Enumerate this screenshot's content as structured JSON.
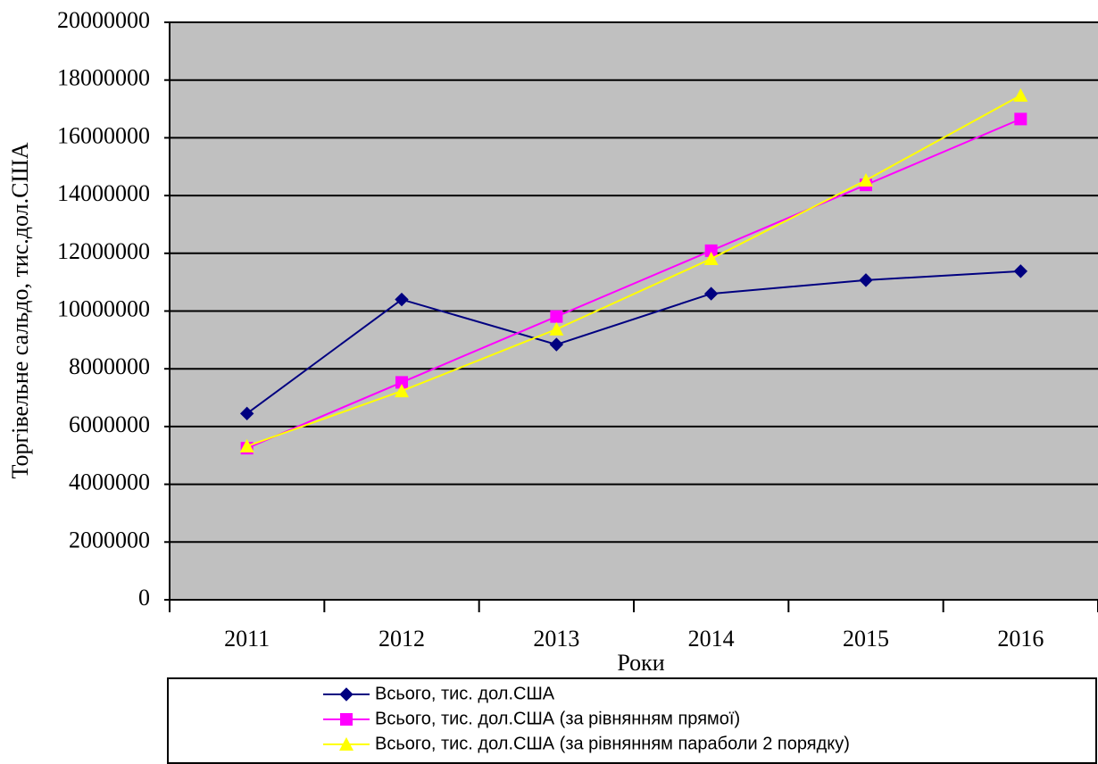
{
  "chart_data": {
    "type": "line",
    "ylabel": "Торгівельне сальдо, тис.дол.США",
    "xlabel": "Роки",
    "categories": [
      "2011",
      "2012",
      "2013",
      "2014",
      "2015",
      "2016"
    ],
    "series": [
      {
        "name": "Всього, тис. дол.США",
        "color": "#000080",
        "marker": "diamond",
        "values": [
          6450000,
          10400000,
          8840000,
          10600000,
          11070000,
          11380000
        ]
      },
      {
        "name": "Всього, тис. дол.США (за рівнянням прямої)",
        "color": "#ff00ff",
        "marker": "square",
        "values": [
          5250000,
          7530000,
          9810000,
          12090000,
          14370000,
          16650000
        ]
      },
      {
        "name": "Всього, тис. дол.США (за рівнянням параболи 2 порядку)",
        "color": "#ffff00",
        "marker": "triangle",
        "values": [
          5320000,
          7230000,
          9370000,
          11810000,
          14530000,
          17470000
        ]
      }
    ],
    "ylim": [
      0,
      20000000
    ],
    "yticks": [
      0,
      2000000,
      4000000,
      6000000,
      8000000,
      10000000,
      12000000,
      14000000,
      16000000,
      18000000,
      20000000
    ],
    "grid": true,
    "plot_background": "#c0c0c0",
    "legend": "bottom"
  }
}
